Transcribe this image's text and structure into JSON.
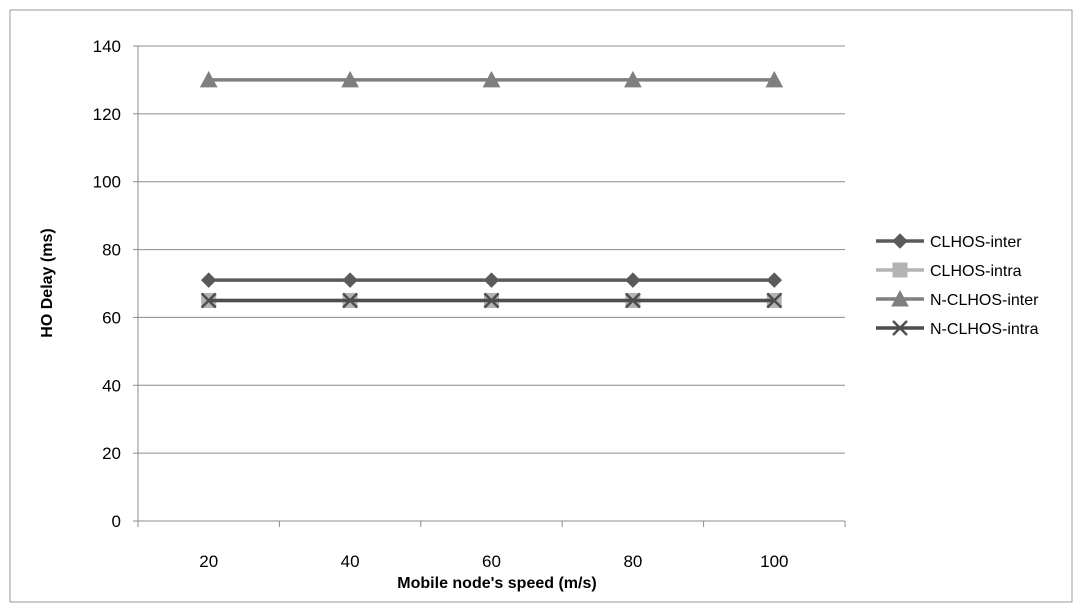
{
  "chart_data": {
    "type": "line",
    "title": "",
    "xlabel": "Mobile node's speed (m/s)",
    "ylabel": "HO Delay (ms)",
    "categories": [
      "20",
      "40",
      "60",
      "80",
      "100"
    ],
    "ylim": [
      0,
      140
    ],
    "yticks": [
      "0",
      "20",
      "40",
      "60",
      "80",
      "100",
      "120",
      "140"
    ],
    "grid": "horizontal",
    "legend_position": "right",
    "series": [
      {
        "name": "CLHOS-inter",
        "values": [
          71,
          71,
          71,
          71,
          71
        ],
        "color": "#5a5a5a",
        "marker": "diamond"
      },
      {
        "name": "CLHOS-intra",
        "values": [
          65,
          65,
          65,
          65,
          65
        ],
        "color": "#b3b3b3",
        "marker": "square"
      },
      {
        "name": "N-CLHOS-inter",
        "values": [
          130,
          130,
          130,
          130,
          130
        ],
        "color": "#7f7f7f",
        "marker": "triangle"
      },
      {
        "name": "N-CLHOS-intra",
        "values": [
          65,
          65,
          65,
          65,
          65
        ],
        "color": "#4d4d4d",
        "marker": "x"
      }
    ]
  }
}
